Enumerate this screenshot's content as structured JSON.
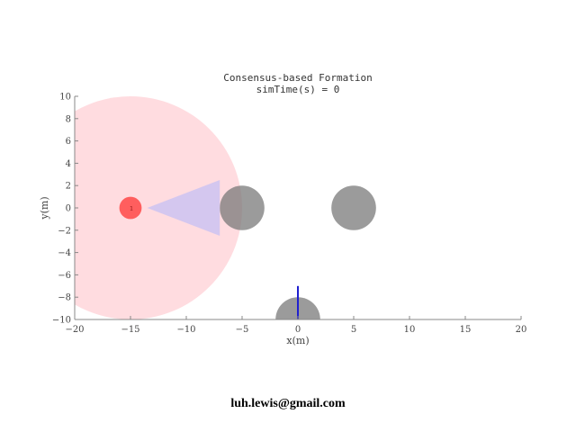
{
  "chart_data": {
    "type": "scatter",
    "title": "Consensus-based Formation",
    "subtitle": "simTime(s) = 0",
    "xlabel": "x(m)",
    "ylabel": "y(m)",
    "xlim": [
      -20,
      20
    ],
    "ylim": [
      -10,
      10
    ],
    "xticks": [
      -20,
      -15,
      -10,
      -5,
      0,
      5,
      10,
      15,
      20
    ],
    "yticks": [
      -10,
      -8,
      -6,
      -4,
      -2,
      0,
      2,
      4,
      6,
      8,
      10
    ],
    "xtick_labels": [
      "−20",
      "−15",
      "−10",
      "−5",
      "0",
      "5",
      "10",
      "15",
      "20"
    ],
    "ytick_labels": [
      "−10",
      "−8",
      "−6",
      "−4",
      "−2",
      "0",
      "2",
      "4",
      "6",
      "8",
      "10"
    ],
    "grid": false,
    "colors": {
      "agent": "#ff5050",
      "sensing_range": "#ffd6da",
      "field_of_view": "#c9c2f2",
      "obstacle": "#7a7a7a",
      "heading_line": "#1f1fd0",
      "axes": "#888888"
    },
    "agent": {
      "x": -15,
      "y": 0,
      "radius": 1,
      "label": "1"
    },
    "sensing_range": {
      "x": -15,
      "y": 0,
      "radius": 10
    },
    "field_of_view": {
      "points": [
        [
          -13.5,
          0
        ],
        [
          -7,
          2.5
        ],
        [
          -7,
          -2.5
        ]
      ]
    },
    "obstacles": [
      {
        "x": -5,
        "y": 0,
        "radius": 2
      },
      {
        "x": 5,
        "y": 0,
        "radius": 2
      },
      {
        "x": 0,
        "y": -10,
        "radius": 2
      }
    ],
    "heading_line": {
      "x": 0,
      "y1": -10,
      "y2": -7
    }
  },
  "watermark": "luh.lewis@gmail.com"
}
